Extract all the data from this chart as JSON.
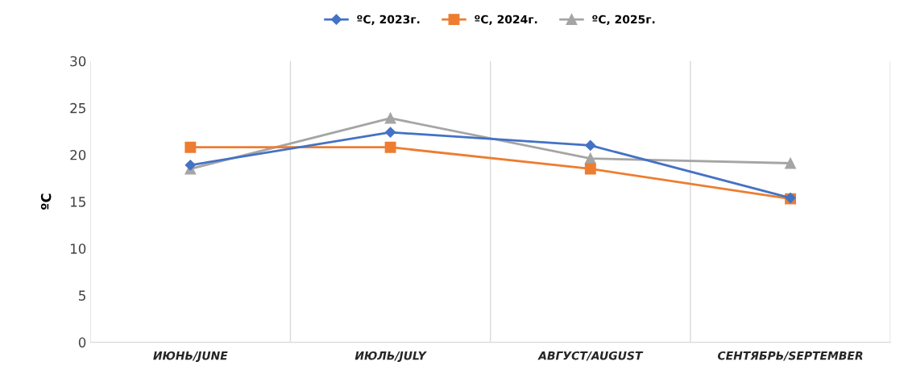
{
  "chart_data": {
    "type": "line",
    "ylabel": "ºC",
    "categories": [
      "ИЮНЬ/JUNE",
      "ИЮЛЬ/JULY",
      "АВГУСТ/AUGUST",
      "СЕНТЯБРЬ/SEPTEMBER"
    ],
    "series": [
      {
        "name": "ºC, 2023г.",
        "color": "#4472c4",
        "marker": "diamond",
        "values": [
          18.9,
          22.4,
          21.0,
          15.4
        ]
      },
      {
        "name": "ºC, 2024г.",
        "color": "#ed7d31",
        "marker": "square",
        "values": [
          20.8,
          20.8,
          18.5,
          15.3
        ]
      },
      {
        "name": "ºC, 2025г.",
        "color": "#a5a5a5",
        "marker": "triangle",
        "values": [
          18.5,
          23.9,
          19.6,
          19.1
        ]
      }
    ],
    "ylim": [
      0,
      30
    ],
    "yticks": [
      0,
      5,
      10,
      15,
      20,
      25,
      30
    ],
    "grid": "x",
    "legend": "top",
    "line_style": "solid"
  }
}
